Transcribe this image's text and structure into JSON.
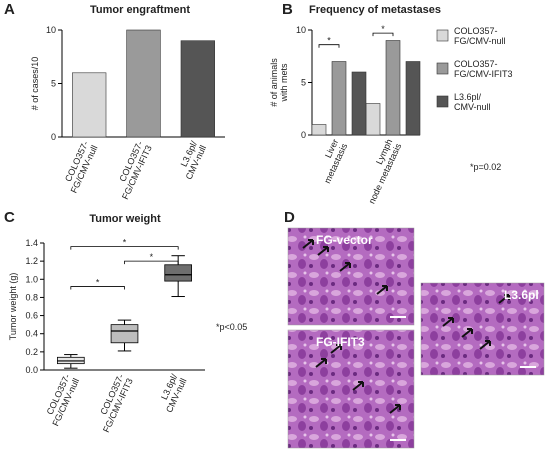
{
  "chart_data": [
    {
      "type": "bar",
      "panel_label": "A",
      "title": "Tumor engraftment",
      "ylabel": "# of cases/10",
      "categories": [
        "COLO357-\nFG/CMV-null",
        "COLO357-\nFG/CMV-IFIT3",
        "L3.6pl/\nCMV-null"
      ],
      "values": [
        6,
        10,
        9
      ],
      "colors": [
        "#d9d9d9",
        "#9a9a9a",
        "#555555"
      ],
      "ylim": [
        0,
        10
      ],
      "yticks": [
        0,
        5,
        10
      ]
    },
    {
      "type": "grouped_bar",
      "panel_label": "B",
      "title": "Frequency of metastases",
      "ylabel": "# of animals\nwith mets",
      "categories": [
        "Liver\nmetastasis",
        "Lymph\nnode metastasis"
      ],
      "series": [
        {
          "name": "COLO357-\nFG/CMV-null",
          "color": "#d9d9d9",
          "values": [
            1,
            3
          ]
        },
        {
          "name": "COLO357-\nFG/CMV-IFIT3",
          "color": "#9a9a9a",
          "values": [
            7,
            9
          ]
        },
        {
          "name": "L3.6pl/\nCMV-null",
          "color": "#555555",
          "values": [
            6,
            7
          ]
        }
      ],
      "annotations": [
        "*",
        "*",
        "*p=0.02"
      ],
      "ylim": [
        0,
        10
      ],
      "yticks": [
        0,
        5,
        10
      ]
    },
    {
      "type": "box",
      "panel_label": "C",
      "title": "Tumor weight",
      "ylabel": "Tumor weight (g)",
      "categories": [
        "COLO357-\nFG/CMV-null",
        "COLO357-\nFG/CMV-IFIT3",
        "L3.6pl/\nCMV-null"
      ],
      "boxes": [
        {
          "whislo": 0.02,
          "q1": 0.07,
          "med": 0.1,
          "q3": 0.14,
          "whishi": 0.17
        },
        {
          "whislo": 0.21,
          "q1": 0.3,
          "med": 0.43,
          "q3": 0.5,
          "whishi": 0.55
        },
        {
          "whislo": 0.81,
          "q1": 0.98,
          "med": 1.05,
          "q3": 1.16,
          "whishi": 1.26
        }
      ],
      "colors": [
        "#e6e6e6",
        "#bdbdbd",
        "#6e6e6e"
      ],
      "annotations": [
        "*",
        "*",
        "*",
        "*p<0.05"
      ],
      "ylim": [
        0,
        1.4
      ],
      "yticks": [
        {
          "value": 0,
          "label": "0.0"
        },
        0.2,
        0.4,
        0.6,
        0.8,
        {
          "value": 1,
          "label": "1.0"
        },
        1.2,
        1.4
      ]
    }
  ],
  "panel_d": {
    "panel_label": "D",
    "images": [
      {
        "label": "FG-vector"
      },
      {
        "label": "FG-IFIT3"
      },
      {
        "label": "L3.6pl"
      }
    ]
  }
}
